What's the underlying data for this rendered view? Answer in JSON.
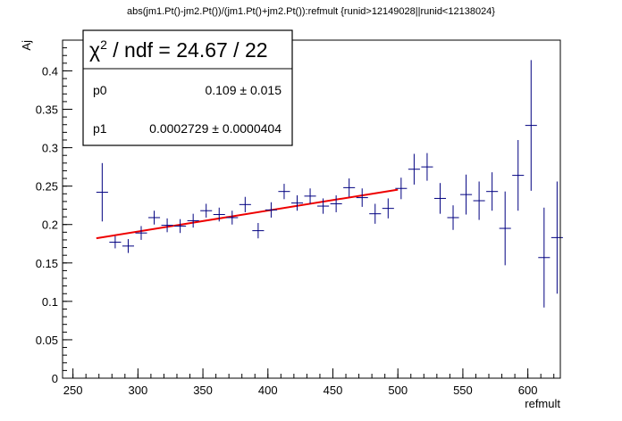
{
  "chart_data": {
    "type": "scatter",
    "title": "abs(jm1.Pt()-jm2.Pt())/(jm1.Pt()+jm2.Pt()):refmult {runid>12149028||runid<12138024}",
    "xlabel": "refmult",
    "ylabel": "Aj",
    "xlim": [
      242,
      625
    ],
    "ylim": [
      0,
      0.44
    ],
    "x_ticks": [
      250,
      300,
      350,
      400,
      450,
      500,
      550,
      600
    ],
    "y_ticks": [
      0,
      0.05,
      0.1,
      0.15,
      0.2,
      0.25,
      0.3,
      0.35,
      0.4
    ],
    "y_tick_labels": [
      "0",
      "0.05",
      "0.1",
      "0.15",
      "0.2",
      "0.25",
      "0.3",
      "0.35",
      "0.4"
    ],
    "grid": false,
    "marker_color": "#000080",
    "fit_color": "#ee0000",
    "series": [
      {
        "points": [
          {
            "x": 272.5,
            "xerr": 4.5,
            "y": 0.242,
            "yerr": 0.038
          },
          {
            "x": 282.5,
            "xerr": 4.5,
            "y": 0.177,
            "yerr": 0.008
          },
          {
            "x": 292.5,
            "xerr": 4.5,
            "y": 0.172,
            "yerr": 0.009
          },
          {
            "x": 302.5,
            "xerr": 4.5,
            "y": 0.189,
            "yerr": 0.009
          },
          {
            "x": 312.5,
            "xerr": 4.5,
            "y": 0.209,
            "yerr": 0.009
          },
          {
            "x": 322.5,
            "xerr": 4.5,
            "y": 0.199,
            "yerr": 0.009
          },
          {
            "x": 332.5,
            "xerr": 4.5,
            "y": 0.198,
            "yerr": 0.009
          },
          {
            "x": 342.5,
            "xerr": 4.5,
            "y": 0.205,
            "yerr": 0.009
          },
          {
            "x": 352.5,
            "xerr": 4.5,
            "y": 0.218,
            "yerr": 0.009
          },
          {
            "x": 362.5,
            "xerr": 4.5,
            "y": 0.213,
            "yerr": 0.009
          },
          {
            "x": 372.5,
            "xerr": 4.5,
            "y": 0.209,
            "yerr": 0.009
          },
          {
            "x": 382.5,
            "xerr": 4.5,
            "y": 0.226,
            "yerr": 0.01
          },
          {
            "x": 392.5,
            "xerr": 4.5,
            "y": 0.192,
            "yerr": 0.01
          },
          {
            "x": 402.5,
            "xerr": 4.5,
            "y": 0.219,
            "yerr": 0.01
          },
          {
            "x": 412.5,
            "xerr": 4.5,
            "y": 0.243,
            "yerr": 0.01
          },
          {
            "x": 422.5,
            "xerr": 4.5,
            "y": 0.228,
            "yerr": 0.01
          },
          {
            "x": 432.5,
            "xerr": 4.5,
            "y": 0.237,
            "yerr": 0.01
          },
          {
            "x": 442.5,
            "xerr": 4.5,
            "y": 0.224,
            "yerr": 0.01
          },
          {
            "x": 452.5,
            "xerr": 4.5,
            "y": 0.227,
            "yerr": 0.011
          },
          {
            "x": 462.5,
            "xerr": 4.5,
            "y": 0.248,
            "yerr": 0.012
          },
          {
            "x": 472.5,
            "xerr": 4.5,
            "y": 0.235,
            "yerr": 0.012
          },
          {
            "x": 482.5,
            "xerr": 4.5,
            "y": 0.214,
            "yerr": 0.013
          },
          {
            "x": 492.5,
            "xerr": 4.5,
            "y": 0.221,
            "yerr": 0.013
          },
          {
            "x": 502.5,
            "xerr": 4.5,
            "y": 0.247,
            "yerr": 0.014
          },
          {
            "x": 512.5,
            "xerr": 4.5,
            "y": 0.272,
            "yerr": 0.02
          },
          {
            "x": 522.5,
            "xerr": 4.5,
            "y": 0.275,
            "yerr": 0.018
          },
          {
            "x": 532.5,
            "xerr": 4.5,
            "y": 0.234,
            "yerr": 0.02
          },
          {
            "x": 542.5,
            "xerr": 4.5,
            "y": 0.209,
            "yerr": 0.016
          },
          {
            "x": 552.5,
            "xerr": 4.5,
            "y": 0.239,
            "yerr": 0.026
          },
          {
            "x": 562.5,
            "xerr": 4.5,
            "y": 0.231,
            "yerr": 0.025
          },
          {
            "x": 572.5,
            "xerr": 4.5,
            "y": 0.243,
            "yerr": 0.025
          },
          {
            "x": 582.5,
            "xerr": 4.5,
            "y": 0.195,
            "yerr": 0.048
          },
          {
            "x": 592.5,
            "xerr": 4.5,
            "y": 0.264,
            "yerr": 0.046
          },
          {
            "x": 602.5,
            "xerr": 4.5,
            "y": 0.329,
            "yerr": 0.085
          },
          {
            "x": 612.5,
            "xerr": 4.5,
            "y": 0.157,
            "yerr": 0.065
          },
          {
            "x": 622.5,
            "xerr": 4.5,
            "y": 0.183,
            "yerr": 0.073
          }
        ]
      }
    ],
    "fit": {
      "p0": 0.109,
      "p1": 0.0002729,
      "x_range": [
        268,
        500
      ]
    },
    "stats_box": {
      "header": "χ² / ndf = 24.67 / 22",
      "header_chi": "χ",
      "header_sup": "2",
      "header_rest": " / ndf = 24.67 / 22",
      "rows": [
        {
          "name": "p0",
          "value": "0.109 ± 0.015"
        },
        {
          "name": "p1",
          "value": "0.0002729 ± 0.0000404"
        }
      ]
    }
  }
}
